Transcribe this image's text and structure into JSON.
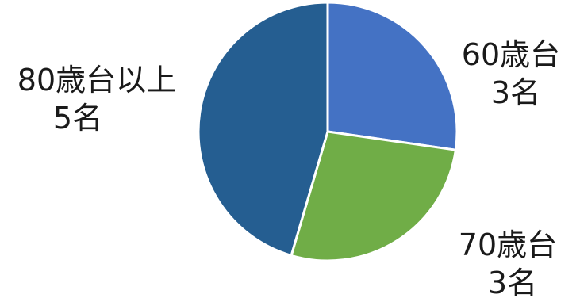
{
  "chart_data": {
    "type": "pie",
    "title": "",
    "slices": [
      {
        "category": "60歳台",
        "count": "3名",
        "value": 3,
        "color": "#4472C4"
      },
      {
        "category": "70歳台",
        "count": "3名",
        "value": 3,
        "color": "#70AD47"
      },
      {
        "category": "80歳台以上",
        "count": "5名",
        "value": 5,
        "color": "#255E91"
      }
    ],
    "start_angle_deg": 0,
    "direction": "clockwise",
    "slice_border_color": "#FFFFFF"
  }
}
